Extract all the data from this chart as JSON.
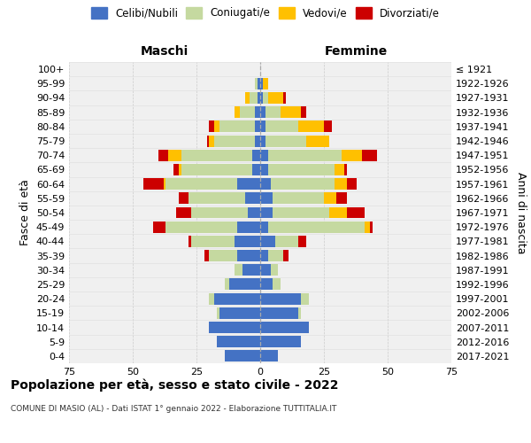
{
  "age_groups": [
    "0-4",
    "5-9",
    "10-14",
    "15-19",
    "20-24",
    "25-29",
    "30-34",
    "35-39",
    "40-44",
    "45-49",
    "50-54",
    "55-59",
    "60-64",
    "65-69",
    "70-74",
    "75-79",
    "80-84",
    "85-89",
    "90-94",
    "95-99",
    "100+"
  ],
  "birth_years": [
    "2017-2021",
    "2012-2016",
    "2007-2011",
    "2002-2006",
    "1997-2001",
    "1992-1996",
    "1987-1991",
    "1982-1986",
    "1977-1981",
    "1972-1976",
    "1967-1971",
    "1962-1966",
    "1957-1961",
    "1952-1956",
    "1947-1951",
    "1942-1946",
    "1937-1941",
    "1932-1936",
    "1927-1931",
    "1922-1926",
    "≤ 1921"
  ],
  "maschi": {
    "celibi": [
      14,
      17,
      20,
      16,
      18,
      12,
      7,
      9,
      10,
      9,
      5,
      6,
      9,
      3,
      3,
      2,
      2,
      2,
      1,
      1,
      0
    ],
    "coniugati": [
      0,
      0,
      0,
      1,
      2,
      2,
      3,
      11,
      17,
      28,
      22,
      22,
      28,
      28,
      28,
      16,
      14,
      6,
      3,
      1,
      0
    ],
    "vedovi": [
      0,
      0,
      0,
      0,
      0,
      0,
      0,
      0,
      0,
      0,
      0,
      0,
      1,
      1,
      5,
      2,
      2,
      2,
      2,
      0,
      0
    ],
    "divorziati": [
      0,
      0,
      0,
      0,
      0,
      0,
      0,
      2,
      1,
      5,
      6,
      4,
      8,
      2,
      4,
      1,
      2,
      0,
      0,
      0,
      0
    ]
  },
  "femmine": {
    "nubili": [
      7,
      16,
      19,
      15,
      16,
      5,
      4,
      3,
      6,
      3,
      5,
      5,
      4,
      3,
      3,
      2,
      2,
      2,
      1,
      1,
      0
    ],
    "coniugate": [
      0,
      0,
      0,
      1,
      3,
      3,
      3,
      6,
      9,
      38,
      22,
      20,
      25,
      26,
      29,
      16,
      13,
      6,
      2,
      0,
      0
    ],
    "vedove": [
      0,
      0,
      0,
      0,
      0,
      0,
      0,
      0,
      0,
      2,
      7,
      5,
      5,
      4,
      8,
      9,
      10,
      8,
      6,
      2,
      0
    ],
    "divorziate": [
      0,
      0,
      0,
      0,
      0,
      0,
      0,
      2,
      3,
      1,
      7,
      4,
      4,
      1,
      6,
      0,
      3,
      2,
      1,
      0,
      0
    ]
  },
  "colors": {
    "celibi": "#4472c4",
    "coniugati": "#c5d9a0",
    "vedovi": "#ffc000",
    "divorziati": "#cc0000"
  },
  "legend_labels": [
    "Celibi/Nubili",
    "Coniugati/e",
    "Vedovi/e",
    "Divorziati/e"
  ],
  "title": "Popolazione per età, sesso e stato civile - 2022",
  "subtitle": "COMUNE DI MASIO (AL) - Dati ISTAT 1° gennaio 2022 - Elaborazione TUTTITALIA.IT",
  "xlabel_left": "Maschi",
  "xlabel_right": "Femmine",
  "ylabel_left": "Fasce di età",
  "ylabel_right": "Anni di nascita",
  "xlim": 75,
  "background_color": "#ffffff",
  "grid_color": "#cccccc"
}
